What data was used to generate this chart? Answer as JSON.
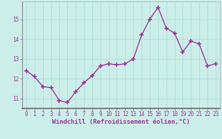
{
  "x": [
    0,
    1,
    2,
    3,
    4,
    5,
    6,
    7,
    8,
    9,
    10,
    11,
    12,
    13,
    14,
    15,
    16,
    17,
    18,
    19,
    20,
    21,
    22,
    23
  ],
  "y": [
    12.4,
    12.1,
    11.6,
    11.55,
    10.9,
    10.8,
    11.35,
    11.8,
    12.15,
    12.65,
    12.75,
    12.7,
    12.75,
    13.0,
    14.2,
    15.0,
    15.6,
    14.55,
    14.3,
    13.35,
    13.9,
    13.75,
    12.65,
    12.75
  ],
  "line_color": "#993399",
  "marker": "+",
  "marker_size": 4,
  "marker_lw": 1.2,
  "background_color": "#cceee8",
  "grid_color": "#aadddd",
  "xlabel": "Windchill (Refroidissement éolien,°C)",
  "xlabel_color": "#993399",
  "tick_color": "#993399",
  "spine_color": "#888888",
  "ylim": [
    10.5,
    15.9
  ],
  "xlim": [
    -0.5,
    23.5
  ],
  "yticks": [
    11,
    12,
    13,
    14,
    15
  ],
  "xticks": [
    0,
    1,
    2,
    3,
    4,
    5,
    6,
    7,
    8,
    9,
    10,
    11,
    12,
    13,
    14,
    15,
    16,
    17,
    18,
    19,
    20,
    21,
    22,
    23
  ],
  "tick_font_size": 5.5,
  "xlabel_font_size": 6.5,
  "linewidth": 1.0
}
